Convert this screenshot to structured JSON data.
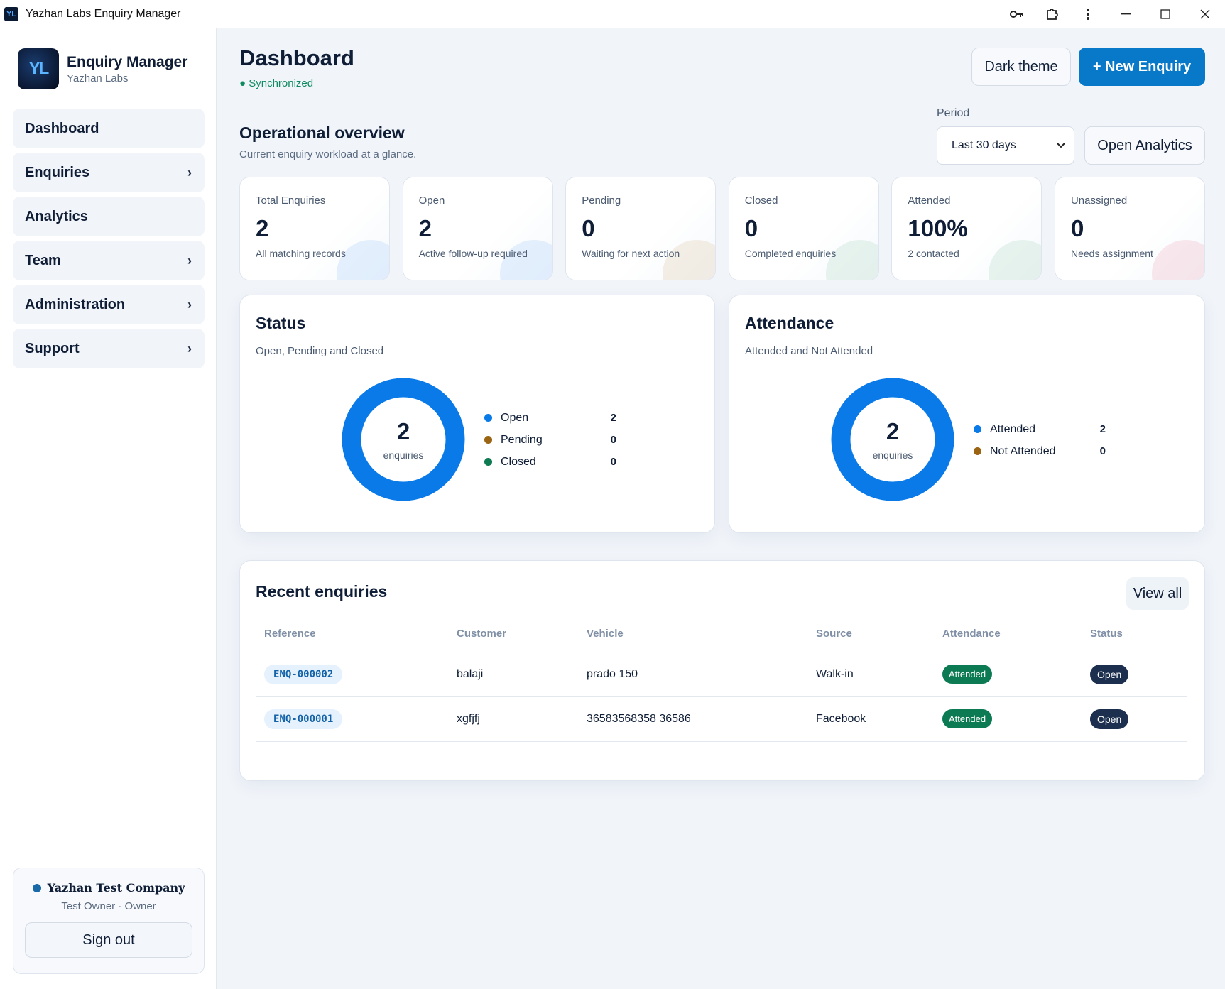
{
  "window": {
    "title": "Yazhan Labs Enquiry Manager"
  },
  "titlebar_icons": [
    "key-icon",
    "puzzle-icon",
    "kebab-menu-icon",
    "minimize-icon",
    "maximize-icon",
    "close-icon"
  ],
  "brand": {
    "name": "Enquiry Manager",
    "sub": "Yazhan Labs",
    "logo": "YL"
  },
  "nav": [
    {
      "label": "Dashboard",
      "chevron": false
    },
    {
      "label": "Enquiries",
      "chevron": true
    },
    {
      "label": "Analytics",
      "chevron": false
    },
    {
      "label": "Team",
      "chevron": true
    },
    {
      "label": "Administration",
      "chevron": true
    },
    {
      "label": "Support",
      "chevron": true
    }
  ],
  "account": {
    "company": "Yazhan Test Company",
    "role": "Test Owner · Owner",
    "signout": "Sign out"
  },
  "header": {
    "title": "Dashboard",
    "sync": "● Synchronized",
    "dark_theme": "Dark theme",
    "new_enquiry": "+ New Enquiry"
  },
  "overview": {
    "title": "Operational overview",
    "subtitle": "Current enquiry workload at a glance.",
    "period_label": "Period",
    "period_value": "Last 30 days",
    "open_analytics": "Open Analytics"
  },
  "stats": [
    {
      "label": "Total Enquiries",
      "value": "2",
      "desc": "All matching records",
      "color": "#cfe3fb"
    },
    {
      "label": "Open",
      "value": "2",
      "desc": "Active follow-up required",
      "color": "#cfe3fb"
    },
    {
      "label": "Pending",
      "value": "0",
      "desc": "Waiting for next action",
      "color": "#ebe0cf"
    },
    {
      "label": "Closed",
      "value": "0",
      "desc": "Completed enquiries",
      "color": "#d6eadf"
    },
    {
      "label": "Attended",
      "value": "100%",
      "desc": "2 contacted",
      "color": "#d6eadf"
    },
    {
      "label": "Unassigned",
      "value": "0",
      "desc": "Needs assignment",
      "color": "#f4d6dc"
    }
  ],
  "status_card": {
    "title": "Status",
    "subtitle": "Open, Pending and Closed",
    "total": "2",
    "unit": "enquiries",
    "legend": [
      {
        "name": "Open",
        "count": "2",
        "color": "#0a7ae8"
      },
      {
        "name": "Pending",
        "count": "0",
        "color": "#9a6412"
      },
      {
        "name": "Closed",
        "count": "0",
        "color": "#0e7a52"
      }
    ]
  },
  "attendance_card": {
    "title": "Attendance",
    "subtitle": "Attended and Not Attended",
    "total": "2",
    "unit": "enquiries",
    "legend": [
      {
        "name": "Attended",
        "count": "2",
        "color": "#0a7ae8"
      },
      {
        "name": "Not Attended",
        "count": "0",
        "color": "#9a6412"
      }
    ]
  },
  "recent": {
    "title": "Recent enquiries",
    "view_all": "View all",
    "columns": [
      "Reference",
      "Customer",
      "Vehicle",
      "Source",
      "Attendance",
      "Status"
    ],
    "rows": [
      {
        "ref": "ENQ-000002",
        "customer": "balaji",
        "vehicle": "prado 150",
        "source": "Walk-in",
        "attendance": "Attended",
        "status": "Open"
      },
      {
        "ref": "ENQ-000001",
        "customer": "xgfjfj",
        "vehicle": "36583568358 36586",
        "source": "Facebook",
        "attendance": "Attended",
        "status": "Open"
      }
    ]
  }
}
